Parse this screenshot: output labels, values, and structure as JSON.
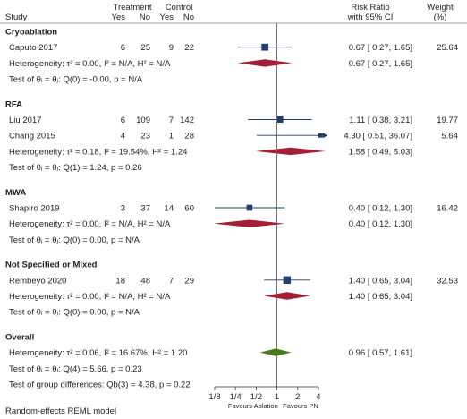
{
  "chart_data": {
    "type": "forest",
    "header": {
      "study": "Study",
      "treatment": "Treatment",
      "control": "Control",
      "yes": "Yes",
      "no": "No",
      "effect_line1": "Risk Ratio",
      "effect_line2": "with 95% CI",
      "weight_line1": "Weight",
      "weight_line2": "(%)"
    },
    "x_axis": {
      "scale": "log2",
      "range": [
        0.125,
        5.4
      ],
      "ticks": [
        {
          "value": 0.125,
          "label": "1/8"
        },
        {
          "value": 0.25,
          "label": "1/4"
        },
        {
          "value": 0.5,
          "label": "1/2"
        },
        {
          "value": 1,
          "label": "1"
        },
        {
          "value": 2,
          "label": "2"
        },
        {
          "value": 4,
          "label": "4"
        }
      ],
      "favours_left": "Favours Ablation",
      "favours_right": "Favours PN"
    },
    "colors": {
      "study_marker": "#1f3f66",
      "subgroup_diamond": "#a31f35",
      "overall_diamond": "#4b7a1a",
      "null_line": "#c0392b"
    },
    "rows": [
      {
        "kind": "group",
        "label": "Cryoablation"
      },
      {
        "kind": "study",
        "label": "Caputo 2017",
        "t_yes": "6",
        "t_no": "25",
        "c_yes": "9",
        "c_no": "22",
        "rr": 0.67,
        "lo": 0.27,
        "hi": 1.65,
        "weight": 25.64,
        "ci_text": "0.67 [  0.27,   1.65]",
        "weight_text": "25.64"
      },
      {
        "kind": "subtotal",
        "label": "Heterogeneity: τ² = 0.00, I² = N/A, H² = N/A",
        "rr": 0.67,
        "lo": 0.27,
        "hi": 1.65,
        "ci_text": "0.67 [  0.27,   1.65]"
      },
      {
        "kind": "note",
        "label": "Test of θᵢ = θⱼ: Q(0) = -0.00, p = N/A"
      },
      {
        "kind": "group",
        "label": "RFA"
      },
      {
        "kind": "study",
        "label": "Liu 2017",
        "t_yes": "6",
        "t_no": "109",
        "c_yes": "7",
        "c_no": "142",
        "rr": 1.11,
        "lo": 0.38,
        "hi": 3.21,
        "weight": 19.77,
        "ci_text": "1.11 [  0.38,   3.21]",
        "weight_text": "19.77"
      },
      {
        "kind": "study",
        "label": "Chang 2015",
        "t_yes": "4",
        "t_no": "23",
        "c_yes": "1",
        "c_no": "28",
        "rr": 4.3,
        "lo": 0.51,
        "hi": 36.07,
        "weight": 5.64,
        "ci_text": "4.30 [  0.51,  36.07]",
        "weight_text": "5.64"
      },
      {
        "kind": "subtotal",
        "label": "Heterogeneity: τ² = 0.18, I² = 19.54%, H² = 1.24",
        "rr": 1.58,
        "lo": 0.49,
        "hi": 5.03,
        "ci_text": "1.58 [  0.49,   5.03]"
      },
      {
        "kind": "note",
        "label": "Test of θᵢ = θⱼ: Q(1) = 1.24, p = 0.26"
      },
      {
        "kind": "group",
        "label": "MWA"
      },
      {
        "kind": "study",
        "label": "Shapiro 2019",
        "t_yes": "3",
        "t_no": "37",
        "c_yes": "14",
        "c_no": "60",
        "rr": 0.4,
        "lo": 0.12,
        "hi": 1.3,
        "weight": 16.42,
        "ci_text": "0.40 [  0.12,   1.30]",
        "weight_text": "16.42"
      },
      {
        "kind": "subtotal",
        "label": "Heterogeneity: τ² = 0.00, I² = N/A, H² = N/A",
        "rr": 0.4,
        "lo": 0.12,
        "hi": 1.3,
        "ci_text": "0.40 [  0.12,   1.30]"
      },
      {
        "kind": "note",
        "label": "Test of θᵢ = θⱼ: Q(0) = 0.00, p = N/A"
      },
      {
        "kind": "group",
        "label": "Not Specified or Mixed"
      },
      {
        "kind": "study",
        "label": "Rembeyo 2020",
        "t_yes": "18",
        "t_no": "48",
        "c_yes": "7",
        "c_no": "29",
        "rr": 1.4,
        "lo": 0.65,
        "hi": 3.04,
        "weight": 32.53,
        "ci_text": "1.40 [  0.65,   3.04]",
        "weight_text": "32.53"
      },
      {
        "kind": "subtotal",
        "label": "Heterogeneity: τ² = 0.00, I² = N/A, H² = N/A",
        "rr": 1.4,
        "lo": 0.65,
        "hi": 3.04,
        "ci_text": "1.40 [  0.65,   3.04]"
      },
      {
        "kind": "note",
        "label": "Test of θᵢ = θⱼ: Q(0) = 0.00, p = N/A"
      },
      {
        "kind": "group",
        "label": "Overall"
      },
      {
        "kind": "overall",
        "label": "Heterogeneity: τ² = 0.06, I² = 16.67%, H² = 1.20",
        "rr": 0.96,
        "lo": 0.57,
        "hi": 1.61,
        "ci_text": "0.96 [  0.57,   1.61]"
      },
      {
        "kind": "note",
        "label": "Test of θᵢ = θⱼ: Q(4) = 5.66, p = 0.23"
      },
      {
        "kind": "note",
        "label": "Test of group differences: Qb(3) = 4.38, p = 0.22"
      }
    ],
    "footnote": "Random-effects REML model"
  }
}
